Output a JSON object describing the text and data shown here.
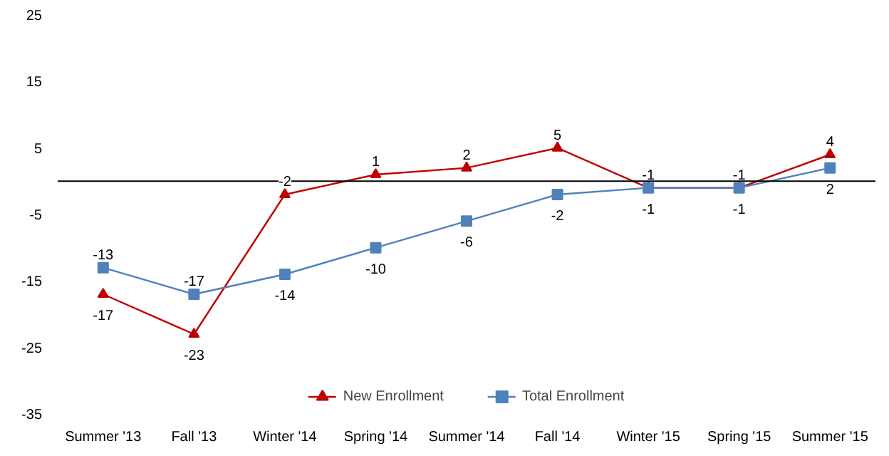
{
  "chart_data": {
    "type": "line",
    "categories": [
      "Summer '13",
      "Fall '13",
      "Winter '14",
      "Spring '14",
      "Summer '14",
      "Fall '14",
      "Winter '15",
      "Spring '15",
      "Summer '15"
    ],
    "series": [
      {
        "name": "New Enrollment",
        "color": "#c00000",
        "marker": "triangle",
        "values": [
          -17,
          -23,
          -2,
          1,
          2,
          5,
          -1,
          -1,
          4
        ]
      },
      {
        "name": "Total Enrollment",
        "color": "#4f81bd",
        "marker": "square",
        "values": [
          -13,
          -17,
          -14,
          -10,
          -6,
          -2,
          -1,
          -1,
          2
        ]
      }
    ],
    "ylim": [
      -35,
      25
    ],
    "yticks": [
      -35,
      -25,
      -15,
      -5,
      5,
      15,
      25
    ],
    "grid": false,
    "legend": "bottom",
    "data_labels": true,
    "ref_lines": [
      {
        "axis": "y",
        "value": 0,
        "color": "#000000"
      }
    ]
  }
}
